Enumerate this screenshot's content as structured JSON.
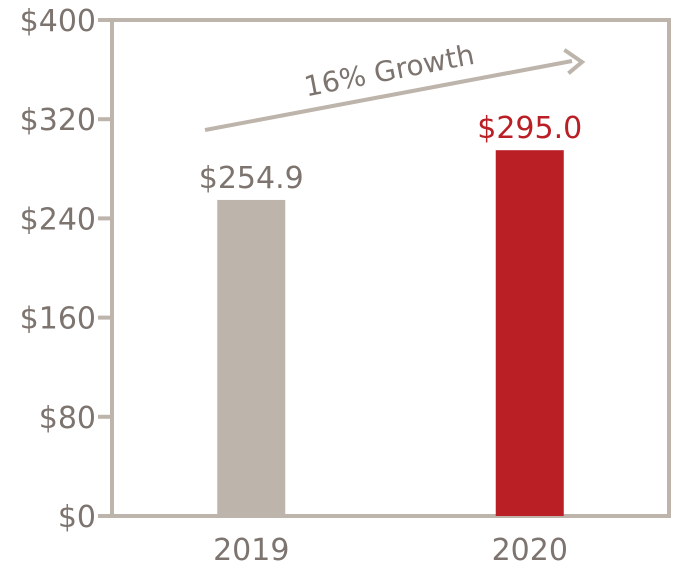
{
  "chart_data": {
    "type": "bar",
    "categories": [
      "2019",
      "2020"
    ],
    "values": [
      254.9,
      295.0
    ],
    "data_labels": [
      "$254.9",
      "$295.0"
    ],
    "colors": [
      "#bdb4ab",
      "#b91f25"
    ],
    "label_colors": [
      "#7d746f",
      "#b91f25"
    ],
    "ylim": [
      0,
      400
    ],
    "yticks": [
      0,
      80,
      160,
      240,
      320,
      400
    ],
    "ytick_labels": [
      "$0",
      "$80",
      "$160",
      "$240",
      "$320",
      "$400"
    ],
    "annotation": "16% Growth",
    "axis_color": "#bdb4ab",
    "grid": false,
    "legend": "none"
  }
}
